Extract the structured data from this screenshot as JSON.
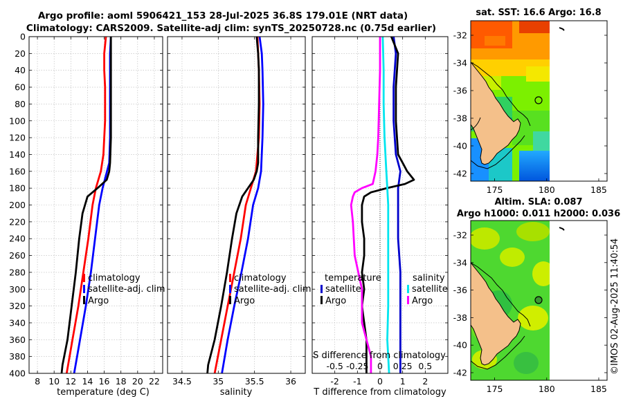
{
  "header": {
    "line1": "Argo profile: aoml 5906421_153 28-Jul-2025 36.8S 179.01E (NRT data)",
    "line2": "Climatology: CARS2009. Satellite-adj clim: synTS_20250728.nc (0.75d earlier)"
  },
  "watermark": "©IMOS 02-Aug-2025 11:40:54",
  "colors": {
    "climatology": "#ff0000",
    "satellite": "#0000ff",
    "argo": "#000000",
    "t_diff_satellite": "#0000cc",
    "s_diff_satellite": "#00e5ee",
    "s_diff_argo": "#ff00ff",
    "grid": "#b8b8b8",
    "land": "#f4c08a"
  },
  "chart_data": [
    {
      "type": "line",
      "id": "temperature",
      "xlabel": "temperature (deg C)",
      "ylabel": "",
      "xlim": [
        7,
        23
      ],
      "ylim": [
        400,
        0
      ],
      "x_ticks": [
        8,
        10,
        12,
        14,
        16,
        18,
        20,
        22
      ],
      "x_tick_labels": [
        "8",
        "10",
        "12",
        "14",
        "16",
        "18",
        "20",
        "22"
      ],
      "y_ticks": [
        0,
        20,
        40,
        60,
        80,
        100,
        120,
        140,
        160,
        180,
        200,
        220,
        240,
        260,
        280,
        300,
        320,
        340,
        360,
        380,
        400
      ],
      "y_tick_labels": [
        "0",
        "20",
        "40",
        "60",
        "80",
        "100",
        "120",
        "140",
        "160",
        "180",
        "200",
        "220",
        "240",
        "260",
        "280",
        "300",
        "320",
        "340",
        "360",
        "380",
        "400"
      ],
      "legend": [
        "climatology",
        "satellite-adj. clim",
        "Argo"
      ],
      "series": [
        {
          "name": "climatology",
          "color": "#ff0000",
          "depth": [
            0,
            20,
            40,
            60,
            80,
            100,
            120,
            140,
            160,
            180,
            200,
            240,
            280,
            320,
            360,
            400
          ],
          "values": [
            16.2,
            16.0,
            16.0,
            16.1,
            16.1,
            16.1,
            16.0,
            15.9,
            15.6,
            15.0,
            14.6,
            14.1,
            13.5,
            12.9,
            12.2,
            11.5
          ]
        },
        {
          "name": "satellite-adj. clim",
          "color": "#0000ff",
          "depth": [
            0,
            20,
            40,
            80,
            120,
            150,
            180,
            200,
            240,
            280,
            320,
            360,
            400
          ],
          "values": [
            16.8,
            16.7,
            16.7,
            16.7,
            16.7,
            16.6,
            15.8,
            15.4,
            14.9,
            14.4,
            13.8,
            13.1,
            12.4
          ]
        },
        {
          "name": "Argo",
          "color": "#000000",
          "depth": [
            0,
            20,
            40,
            80,
            120,
            150,
            160,
            170,
            180,
            190,
            200,
            210,
            240,
            280,
            320,
            360,
            390,
            400
          ],
          "values": [
            16.8,
            16.8,
            16.8,
            16.8,
            16.8,
            16.7,
            16.6,
            16.3,
            15.2,
            14.0,
            13.7,
            13.4,
            13.0,
            12.6,
            12.1,
            11.6,
            11.0,
            10.9
          ]
        }
      ]
    },
    {
      "type": "line",
      "id": "salinity",
      "xlabel": "salinity",
      "ylabel": "",
      "xlim": [
        34.3,
        36.2
      ],
      "ylim": [
        400,
        0
      ],
      "x_ticks": [
        34.5,
        35,
        35.5,
        36
      ],
      "x_tick_labels": [
        "34.5",
        "35",
        "35.5",
        "36"
      ],
      "legend": [
        "climatology",
        "satellite-adj. clim",
        "Argo"
      ],
      "series": [
        {
          "name": "climatology",
          "color": "#ff0000",
          "depth": [
            0,
            40,
            80,
            120,
            160,
            180,
            200,
            240,
            280,
            320,
            360,
            400
          ],
          "values": [
            35.54,
            35.56,
            35.57,
            35.56,
            35.52,
            35.45,
            35.38,
            35.31,
            35.22,
            35.13,
            35.04,
            34.95
          ]
        },
        {
          "name": "satellite-adj. clim",
          "color": "#0000ff",
          "depth": [
            0,
            20,
            40,
            80,
            120,
            160,
            180,
            200,
            240,
            280,
            320,
            360,
            400
          ],
          "values": [
            35.57,
            35.6,
            35.61,
            35.62,
            35.61,
            35.59,
            35.55,
            35.48,
            35.41,
            35.32,
            35.22,
            35.13,
            35.05
          ]
        },
        {
          "name": "Argo",
          "color": "#000000",
          "depth": [
            0,
            20,
            40,
            80,
            120,
            150,
            160,
            170,
            180,
            190,
            200,
            210,
            240,
            280,
            320,
            360,
            390,
            400
          ],
          "values": [
            35.53,
            35.55,
            35.56,
            35.56,
            35.55,
            35.55,
            35.53,
            35.49,
            35.41,
            35.33,
            35.29,
            35.25,
            35.19,
            35.12,
            35.04,
            34.95,
            34.86,
            34.85
          ]
        }
      ]
    },
    {
      "type": "line",
      "id": "differences",
      "xlabel": "T difference from climatology",
      "xlabel_top": "S difference from climatology",
      "xlim": [
        -3,
        3
      ],
      "ylim": [
        400,
        0
      ],
      "x_ticks": [
        -2,
        -1,
        0,
        1,
        2
      ],
      "x_tick_labels": [
        "-2",
        "-1",
        "0",
        "1",
        "2"
      ],
      "s_ticks": [
        -0.5,
        -0.25,
        0,
        0.25,
        0.5
      ],
      "s_tick_labels": [
        "-0.5",
        "-0.25",
        "0",
        "0.25",
        "0.5"
      ],
      "s_scale": 4,
      "legend_temperature_title": "temperature",
      "legend_salinity_title": "salinity",
      "legend_temperature": [
        "satellite",
        "Argo"
      ],
      "legend_salinity": [
        "satellite",
        "Argo"
      ],
      "series": [
        {
          "name": "temperature satellite",
          "color": "#0000cc",
          "depth": [
            0,
            20,
            60,
            100,
            140,
            160,
            180,
            200,
            240,
            280,
            320,
            360,
            400
          ],
          "values": [
            0.6,
            0.7,
            0.6,
            0.6,
            0.7,
            0.9,
            0.8,
            0.8,
            0.8,
            0.9,
            0.9,
            0.9,
            0.9
          ]
        },
        {
          "name": "temperature Argo",
          "color": "#000000",
          "depth": [
            0,
            20,
            60,
            100,
            140,
            150,
            160,
            170,
            175,
            180,
            185,
            190,
            200,
            220,
            240,
            260,
            280,
            300,
            320,
            340,
            360,
            380,
            400
          ],
          "values": [
            0.5,
            0.8,
            0.7,
            0.7,
            0.8,
            1.0,
            1.2,
            1.5,
            1.1,
            0.3,
            -0.4,
            -0.7,
            -0.8,
            -0.8,
            -0.7,
            -0.7,
            -0.8,
            -0.7,
            -0.8,
            -0.7,
            -0.6,
            -0.6,
            -0.6
          ]
        },
        {
          "name": "salinity satellite",
          "color": "#00e5ee",
          "depth": [
            0,
            40,
            80,
            120,
            160,
            180,
            200,
            240,
            280,
            320,
            360,
            400
          ],
          "values": [
            0.03,
            0.04,
            0.04,
            0.05,
            0.07,
            0.08,
            0.09,
            0.09,
            0.09,
            0.09,
            0.08,
            0.1
          ]
        },
        {
          "name": "salinity Argo",
          "color": "#ff00ff",
          "depth": [
            0,
            40,
            80,
            120,
            140,
            160,
            175,
            180,
            185,
            190,
            200,
            220,
            260,
            300,
            340,
            380,
            400
          ],
          "values": [
            0.0,
            0.0,
            -0.01,
            -0.02,
            -0.03,
            -0.05,
            -0.08,
            -0.2,
            -0.28,
            -0.3,
            -0.32,
            -0.3,
            -0.28,
            -0.2,
            -0.2,
            -0.1,
            -0.1
          ]
        }
      ]
    }
  ],
  "maps": [
    {
      "id": "sst",
      "title": "sat. SST: 16.6 Argo: 16.8",
      "x_tick_labels": [
        "175",
        "180",
        "185"
      ],
      "y_tick_labels": [
        "-32",
        "-34",
        "-36",
        "-38",
        "-40",
        "-42"
      ]
    },
    {
      "id": "sla",
      "title_line1": "Altim. SLA: 0.087",
      "title_line2": "Argo h1000: 0.011 h2000: 0.036",
      "x_tick_labels": [
        "175",
        "180",
        "185"
      ],
      "y_tick_labels": [
        "-32",
        "-34",
        "-36",
        "-38",
        "-40",
        "-42"
      ]
    }
  ]
}
